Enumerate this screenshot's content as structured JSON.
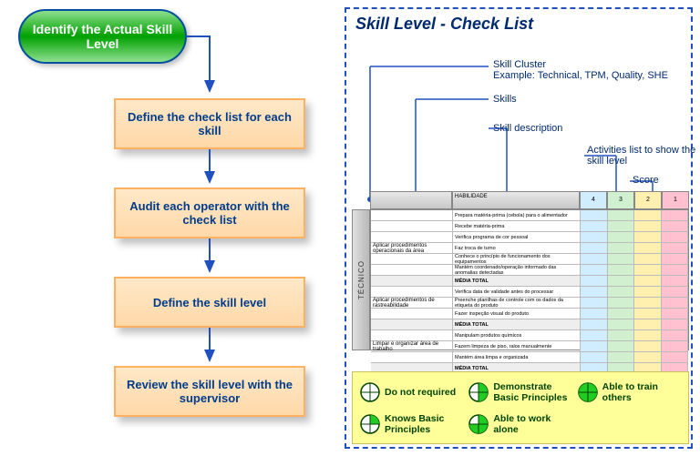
{
  "flow": {
    "start": "Identify the Actual\nSkill Level",
    "steps": [
      "Define the check list for each skill",
      "Audit each operator with the check list",
      "Define the skill level",
      "Review the skill level with the supervisor"
    ],
    "oval_gradient": [
      "#8ee08e",
      "#00a000",
      "#8ee08e"
    ],
    "oval_border": "#0050a0",
    "box_bg": [
      "#ffe8c8",
      "#ffd8a8"
    ],
    "box_border": "#ffb060",
    "box_text": "#003c8a",
    "arrow_color": "#2050c0"
  },
  "panel": {
    "title": "Skill Level - Check List",
    "border": "#2050c0",
    "callouts": {
      "skill_cluster": "Skill Cluster",
      "skill_cluster_example": "Example: Technical, TPM, Quality, SHE",
      "skills": "Skills",
      "skill_desc": "Skill description",
      "activities": "Activities list to show the skill level",
      "score": "Score"
    }
  },
  "table": {
    "vertical_label": "TÉCNICO",
    "header_label": "HABILIDADE",
    "score_headers": [
      "4",
      "3",
      "2",
      "1"
    ],
    "score_colors": [
      "#d0ecff",
      "#d0f0d0",
      "#fff0b0",
      "#ffc0d0"
    ],
    "groups": [
      {
        "skill": "Aplicar procedimentos operacionais da área",
        "rows": [
          "Prepara matéria-prima (cebola) para o alimentador",
          "Recebe matéria-prima",
          "Verifica programa de cor pessoal",
          "Faz troca de turno",
          "Conhece o princípio de funcionamento dos equipamentos",
          "Mantém coordenado/operação informado das anomalias detectadas"
        ],
        "total": "MÉDIA TOTAL"
      },
      {
        "skill": "Aplicar procedimentos de rastreabilidade",
        "rows": [
          "Verifica data de validade antes do processar",
          "Preenche planilhas de controle com os dados da etiqueta do produto",
          "Fazer inspeção visual do produto"
        ],
        "total": "MÉDIA TOTAL"
      },
      {
        "skill": "Limpar e organizar área de trabalho",
        "rows": [
          "Manipulam produtos químicos",
          "Fazem limpeza de piso, ralos manualmente",
          "Mantém área limpa e organizada"
        ],
        "total": "MÉDIA TOTAL"
      }
    ]
  },
  "legend": {
    "bg": "#ffff99",
    "items": [
      {
        "fill": 0,
        "label": "Do not required"
      },
      {
        "fill": 2,
        "label": "Demonstrate Basic Principles"
      },
      {
        "fill": 4,
        "label": "Able to train others"
      },
      {
        "fill": 1,
        "label": "Knows Basic Principles"
      },
      {
        "fill": 3,
        "label": "Able to work alone"
      }
    ],
    "circle_stroke": "#004400",
    "circle_fill": "#22cc22"
  }
}
